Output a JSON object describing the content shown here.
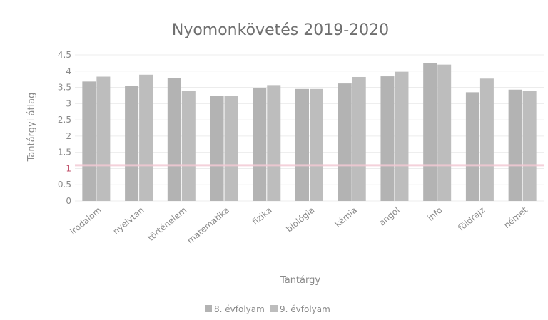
{
  "chart_data": {
    "type": "bar",
    "title": "Nyomonkövetés 2019-2020",
    "xlabel": "Tantárgy",
    "ylabel": "Tantárgyi átlag",
    "ylim": [
      0,
      4.5
    ],
    "yticks": [
      "0",
      "0.5",
      "1",
      "1.5",
      "2",
      "2.5",
      "3",
      "3.5",
      "4",
      "4.5"
    ],
    "grid": true,
    "legend_position": "bottom",
    "categories": [
      "irodalom",
      "nyelvtan",
      "történelem",
      "matematika",
      "fizika",
      "biológia",
      "kémia",
      "angol",
      "info",
      "földrajz",
      "német"
    ],
    "series": [
      {
        "name": "8. évfolyam",
        "color": "#b3b3b3",
        "values": [
          3.68,
          3.55,
          3.79,
          3.23,
          3.49,
          3.45,
          3.62,
          3.84,
          4.25,
          3.35,
          3.43
        ]
      },
      {
        "name": "9. évfolyam",
        "color": "#bdbdbd",
        "values": [
          3.83,
          3.89,
          3.4,
          3.23,
          3.57,
          3.45,
          3.82,
          3.98,
          4.2,
          3.77,
          3.4
        ]
      }
    ],
    "reference_line": {
      "value": 1.1,
      "color": "#f2c9d3"
    }
  }
}
